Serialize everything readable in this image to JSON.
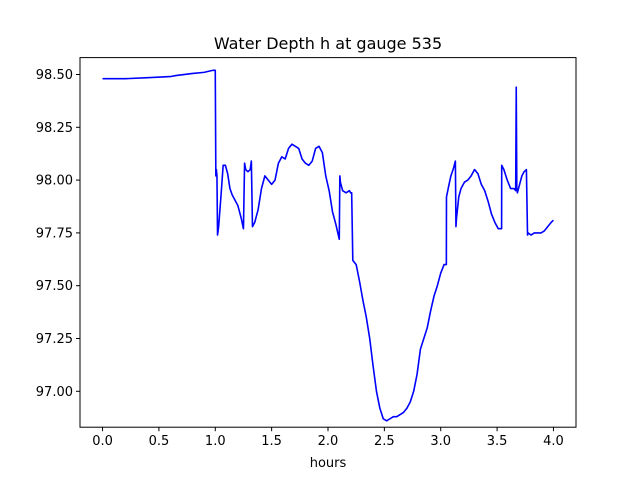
{
  "chart_data": {
    "type": "line",
    "title": "Water Depth h at gauge 535",
    "xlabel": "hours",
    "ylabel": "",
    "xlim": [
      -0.2,
      4.2
    ],
    "ylim": [
      96.83,
      98.58
    ],
    "xticks": [
      "0.0",
      "0.5",
      "1.0",
      "1.5",
      "2.0",
      "2.5",
      "3.0",
      "3.5",
      "4.0"
    ],
    "yticks": [
      "97.00",
      "97.25",
      "97.50",
      "97.75",
      "98.00",
      "98.25",
      "98.50"
    ],
    "grid": false,
    "legend": "none",
    "series": [
      {
        "color": "#0000ff",
        "x": [
          0.0,
          0.2,
          0.4,
          0.6,
          0.65,
          0.8,
          0.9,
          0.98,
          1.0,
          1.005,
          1.01,
          1.015,
          1.02,
          1.03,
          1.05,
          1.07,
          1.09,
          1.11,
          1.13,
          1.15,
          1.2,
          1.23,
          1.25,
          1.26,
          1.27,
          1.29,
          1.31,
          1.32,
          1.33,
          1.35,
          1.38,
          1.41,
          1.44,
          1.47,
          1.5,
          1.53,
          1.56,
          1.59,
          1.62,
          1.65,
          1.68,
          1.71,
          1.74,
          1.77,
          1.8,
          1.83,
          1.86,
          1.89,
          1.92,
          1.95,
          1.98,
          2.01,
          2.04,
          2.07,
          2.1,
          2.105,
          2.11,
          2.13,
          2.16,
          2.19,
          2.2,
          2.21,
          2.22,
          2.25,
          2.28,
          2.31,
          2.34,
          2.37,
          2.4,
          2.43,
          2.46,
          2.49,
          2.52,
          2.55,
          2.58,
          2.61,
          2.64,
          2.67,
          2.7,
          2.73,
          2.76,
          2.79,
          2.82,
          2.85,
          2.88,
          2.91,
          2.94,
          2.97,
          3.0,
          3.03,
          3.05,
          3.051,
          3.07,
          3.09,
          3.11,
          3.13,
          3.135,
          3.14,
          3.16,
          3.18,
          3.21,
          3.24,
          3.27,
          3.3,
          3.33,
          3.36,
          3.39,
          3.42,
          3.45,
          3.48,
          3.51,
          3.54,
          3.541,
          3.56,
          3.59,
          3.62,
          3.65,
          3.665,
          3.67,
          3.675,
          3.68,
          3.7,
          3.72,
          3.74,
          3.76,
          3.77,
          3.775,
          3.8,
          3.83,
          3.86,
          3.89,
          3.92,
          3.95,
          3.98,
          4.0
        ],
        "y": [
          98.48,
          98.48,
          98.485,
          98.49,
          98.495,
          98.505,
          98.51,
          98.52,
          98.52,
          98.02,
          98.05,
          98.02,
          97.74,
          97.78,
          97.92,
          98.07,
          98.07,
          98.03,
          97.96,
          97.93,
          97.88,
          97.82,
          97.77,
          98.08,
          98.05,
          98.04,
          98.05,
          98.09,
          97.78,
          97.8,
          97.86,
          97.96,
          98.02,
          98.0,
          97.98,
          98.0,
          98.08,
          98.11,
          98.1,
          98.15,
          98.17,
          98.16,
          98.15,
          98.1,
          98.08,
          98.07,
          98.09,
          98.15,
          98.16,
          98.13,
          98.02,
          97.95,
          97.85,
          97.79,
          97.72,
          98.02,
          97.99,
          97.95,
          97.94,
          97.95,
          97.94,
          97.94,
          97.62,
          97.6,
          97.52,
          97.43,
          97.35,
          97.25,
          97.12,
          97.0,
          96.92,
          96.87,
          96.86,
          96.87,
          96.88,
          96.88,
          96.89,
          96.9,
          96.92,
          96.95,
          97.0,
          97.08,
          97.2,
          97.25,
          97.3,
          97.38,
          97.45,
          97.5,
          97.56,
          97.6,
          97.6,
          97.92,
          97.97,
          98.02,
          98.05,
          98.09,
          97.78,
          97.82,
          97.92,
          97.96,
          97.99,
          98.0,
          98.02,
          98.05,
          98.03,
          97.98,
          97.95,
          97.9,
          97.84,
          97.8,
          97.77,
          97.77,
          98.07,
          98.05,
          98.0,
          97.96,
          97.96,
          97.95,
          98.44,
          97.96,
          97.94,
          97.98,
          98.02,
          98.04,
          98.05,
          97.74,
          97.75,
          97.74,
          97.75,
          97.75,
          97.75,
          97.76,
          97.78,
          97.8,
          97.81
        ]
      }
    ]
  }
}
